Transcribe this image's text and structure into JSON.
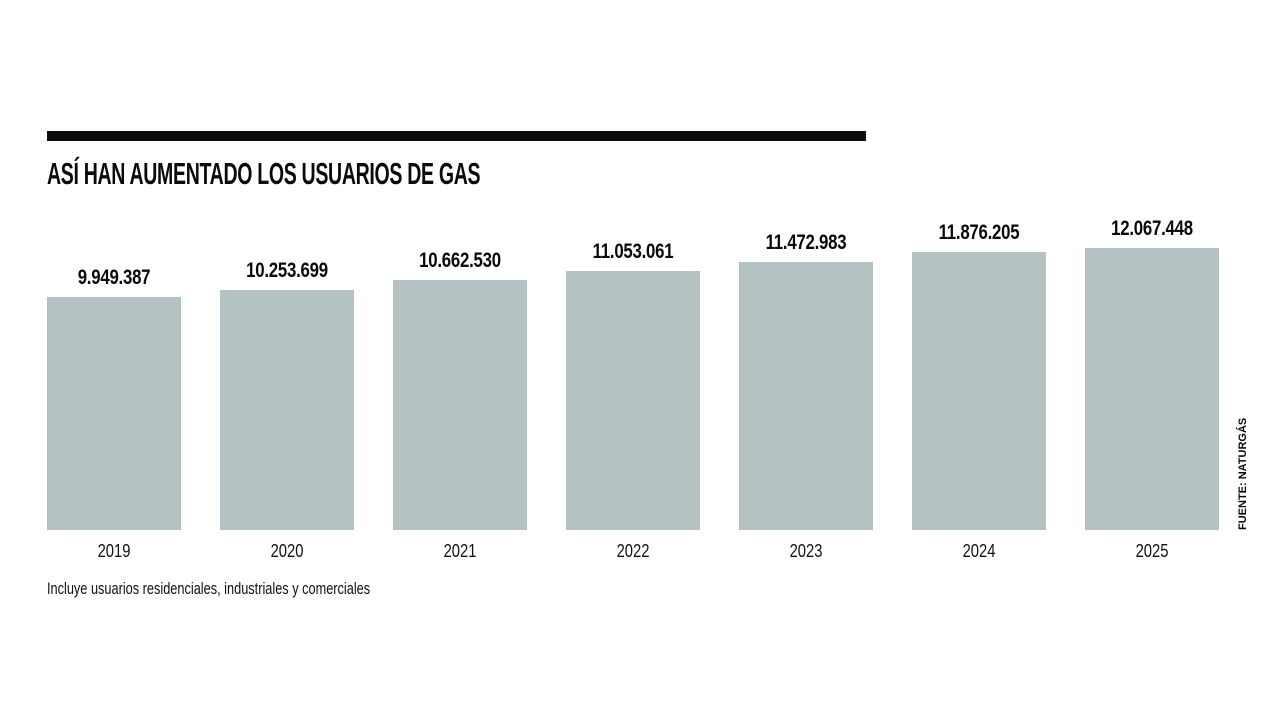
{
  "header": {
    "title": "ASÍ HAN AUMENTADO LOS USUARIOS DE GAS"
  },
  "chart_data": {
    "type": "bar",
    "title": "ASÍ HAN AUMENTADO LOS USUARIOS DE GAS",
    "categories": [
      "2019",
      "2020",
      "2021",
      "2022",
      "2023",
      "2024",
      "2025"
    ],
    "values": [
      9949387,
      10253699,
      10662530,
      11053061,
      11472983,
      11876205,
      12067448
    ],
    "value_labels": [
      "9.949.387",
      "10.253.699",
      "10.662.530",
      "11.053.061",
      "11.472.983",
      "11.876.205",
      "12.067.448"
    ],
    "xlabel": "",
    "ylabel": "",
    "ylim": [
      0,
      12500000
    ],
    "grid": false,
    "legend_position": "none",
    "bar_color": "#b5c2c4",
    "data_label_position": "above-bar",
    "category_label_position": "below-bar"
  },
  "footnote": "Incluye usuarios residenciales, industriales y comerciales",
  "source": "FUENTE: NATURGÁS",
  "colors": {
    "background": "#ffffff",
    "rule": "#0d0d0d",
    "bar_fill": "#b5c2c4",
    "text": "#0a0a0a"
  }
}
